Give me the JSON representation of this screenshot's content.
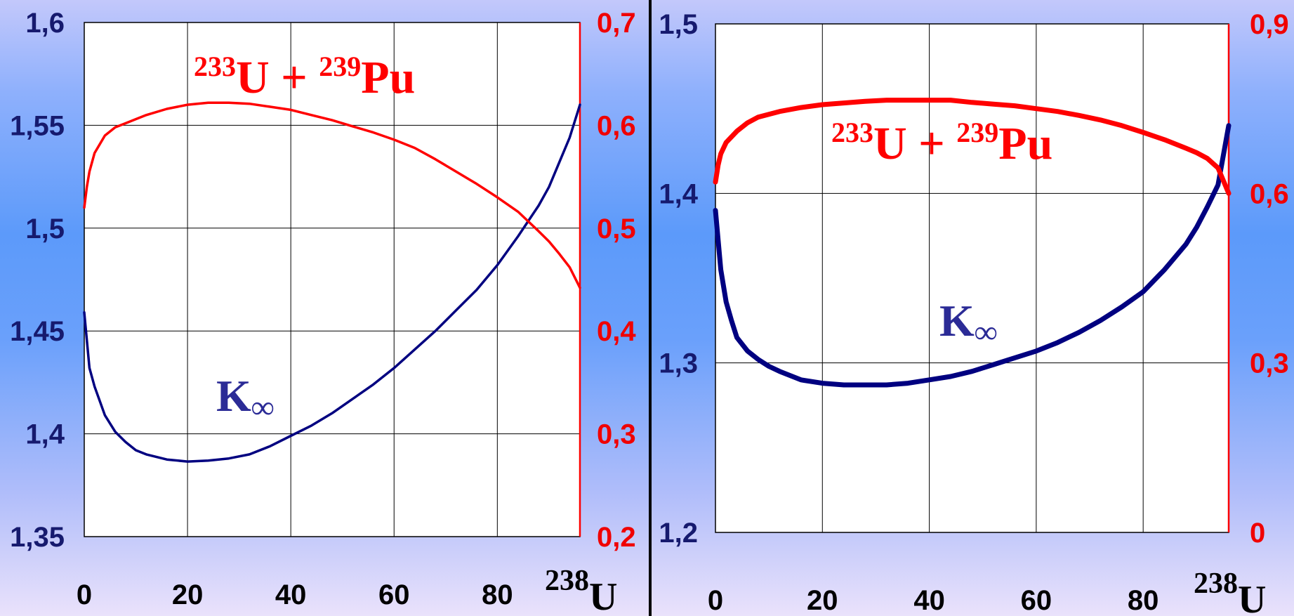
{
  "colors": {
    "keff_line": "#000080",
    "fissile_line": "#ff0000",
    "keff_annotation": "#2b2b96",
    "left_axis_ticks": "#161a6e",
    "right_axis_ticks": "#f00000",
    "plot_background": "#ffffff",
    "grid": "#000000"
  },
  "chart_data": [
    {
      "type": "line",
      "x_label": "238U",
      "x_label_mass": "238",
      "x_label_symbol": "U",
      "xlim": [
        0,
        96
      ],
      "x_ticks": [
        0,
        20,
        40,
        60,
        80
      ],
      "x_tick_labels": [
        "0",
        "20",
        "40",
        "60",
        "80"
      ],
      "ylim_left": [
        1.35,
        1.6
      ],
      "y_left_ticks": [
        1.35,
        1.4,
        1.45,
        1.5,
        1.55,
        1.6
      ],
      "y_left_tick_labels": [
        "1,35",
        "1,4",
        "1,45",
        "1,5",
        "1,55",
        "1,6"
      ],
      "ylim_right": [
        0.2,
        0.7
      ],
      "y_right_ticks": [
        0.2,
        0.3,
        0.4,
        0.5,
        0.6,
        0.7
      ],
      "y_right_tick_labels": [
        "0,2",
        "0,3",
        "0,4",
        "0,5",
        "0,6",
        "0,7"
      ],
      "grid": true,
      "series": [
        {
          "name": "K∞",
          "axis": "left",
          "x": [
            0,
            1,
            2,
            4,
            6,
            8,
            10,
            12,
            16,
            20,
            24,
            28,
            32,
            36,
            40,
            44,
            48,
            52,
            56,
            60,
            64,
            68,
            72,
            76,
            80,
            84,
            88,
            90,
            92,
            94,
            96
          ],
          "y": [
            1.459,
            1.432,
            1.423,
            1.409,
            1.401,
            1.396,
            1.392,
            1.39,
            1.3875,
            1.3865,
            1.387,
            1.388,
            1.39,
            1.394,
            1.399,
            1.404,
            1.41,
            1.417,
            1.424,
            1.432,
            1.441,
            1.45,
            1.46,
            1.47,
            1.482,
            1.496,
            1.511,
            1.52,
            1.532,
            1.544,
            1.56
          ]
        },
        {
          "name": "233U + 239Pu",
          "axis": "right",
          "x": [
            0,
            0.5,
            1,
            2,
            4,
            6,
            8,
            10,
            12,
            16,
            20,
            24,
            28,
            32,
            36,
            40,
            44,
            48,
            52,
            56,
            60,
            64,
            68,
            72,
            76,
            80,
            84,
            88,
            90,
            92,
            94,
            96
          ],
          "y": [
            0.52,
            0.54,
            0.555,
            0.573,
            0.59,
            0.598,
            0.602,
            0.606,
            0.61,
            0.616,
            0.62,
            0.622,
            0.622,
            0.621,
            0.618,
            0.615,
            0.61,
            0.605,
            0.599,
            0.593,
            0.586,
            0.578,
            0.567,
            0.555,
            0.543,
            0.53,
            0.516,
            0.497,
            0.487,
            0.475,
            0.462,
            0.442
          ]
        }
      ],
      "annotation_pu": {
        "m1": "233",
        "e1": "U + ",
        "m2": "239",
        "e2": "Pu"
      },
      "annotation_k": {
        "main": "K",
        "sub": "∞"
      }
    },
    {
      "type": "line",
      "x_label": "238U",
      "x_label_mass": "238",
      "x_label_symbol": "U",
      "xlim": [
        0,
        96
      ],
      "x_ticks": [
        0,
        20,
        40,
        60,
        80
      ],
      "x_tick_labels": [
        "0",
        "20",
        "40",
        "60",
        "80"
      ],
      "ylim_left": [
        1.2,
        1.5
      ],
      "y_left_ticks": [
        1.2,
        1.3,
        1.4,
        1.5
      ],
      "y_left_tick_labels": [
        "1,2",
        "1,3",
        "1,4",
        "1,5"
      ],
      "ylim_right": [
        0,
        0.9
      ],
      "y_right_ticks": [
        0,
        0.3,
        0.6,
        0.9
      ],
      "y_right_tick_labels": [
        "0",
        "0,3",
        "0,6",
        "0,9"
      ],
      "grid": true,
      "series": [
        {
          "name": "K∞",
          "axis": "left",
          "x": [
            0,
            1,
            2,
            3,
            4,
            6,
            8,
            10,
            12,
            16,
            20,
            24,
            28,
            32,
            36,
            40,
            44,
            48,
            52,
            56,
            60,
            64,
            68,
            72,
            76,
            80,
            84,
            88,
            90,
            92,
            94,
            96
          ],
          "y": [
            1.39,
            1.355,
            1.336,
            1.325,
            1.315,
            1.307,
            1.302,
            1.298,
            1.295,
            1.29,
            1.288,
            1.287,
            1.287,
            1.287,
            1.288,
            1.29,
            1.292,
            1.295,
            1.299,
            1.303,
            1.307,
            1.312,
            1.318,
            1.325,
            1.333,
            1.342,
            1.355,
            1.37,
            1.38,
            1.392,
            1.405,
            1.44
          ]
        },
        {
          "name": "233U + 239Pu",
          "axis": "right",
          "x": [
            0,
            0.5,
            1,
            2,
            4,
            6,
            8,
            10,
            12,
            16,
            20,
            24,
            28,
            32,
            36,
            40,
            44,
            48,
            52,
            56,
            60,
            64,
            68,
            72,
            76,
            80,
            84,
            88,
            90,
            92,
            94,
            96
          ],
          "y": [
            0.62,
            0.65,
            0.67,
            0.69,
            0.71,
            0.725,
            0.735,
            0.74,
            0.745,
            0.752,
            0.757,
            0.76,
            0.763,
            0.765,
            0.765,
            0.765,
            0.765,
            0.761,
            0.758,
            0.755,
            0.75,
            0.745,
            0.738,
            0.73,
            0.72,
            0.708,
            0.695,
            0.68,
            0.672,
            0.662,
            0.645,
            0.6
          ]
        }
      ],
      "annotation_pu": {
        "m1": "233",
        "e1": "U + ",
        "m2": "239",
        "e2": "Pu"
      },
      "annotation_k": {
        "main": "K",
        "sub": "∞"
      }
    }
  ]
}
